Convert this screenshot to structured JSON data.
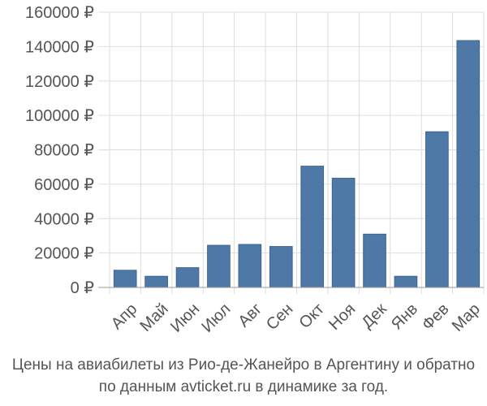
{
  "chart_data": {
    "type": "bar",
    "categories": [
      "Апр",
      "Май",
      "Июн",
      "Июл",
      "Авг",
      "Сен",
      "Окт",
      "Ноя",
      "Дек",
      "Янв",
      "Фев",
      "Мар"
    ],
    "values": [
      10000,
      6500,
      11500,
      24500,
      25000,
      23800,
      70500,
      63500,
      31000,
      6500,
      90500,
      143500
    ],
    "ylim": [
      0,
      160000
    ],
    "yticks": [
      0,
      20000,
      40000,
      60000,
      80000,
      100000,
      120000,
      140000,
      160000
    ],
    "ytick_labels": [
      "0 ₽",
      "20000 ₽",
      "40000 ₽",
      "60000 ₽",
      "80000 ₽",
      "100000 ₽",
      "120000 ₽",
      "140000 ₽",
      "160000 ₽"
    ],
    "grid": true,
    "bar_color": "#4e79a7"
  },
  "caption": {
    "line1": "Цены на авиабилеты из Рио-де-Жанейро в Аргентину и обратно",
    "line2": "по данным avticket.ru в динамике за год."
  }
}
